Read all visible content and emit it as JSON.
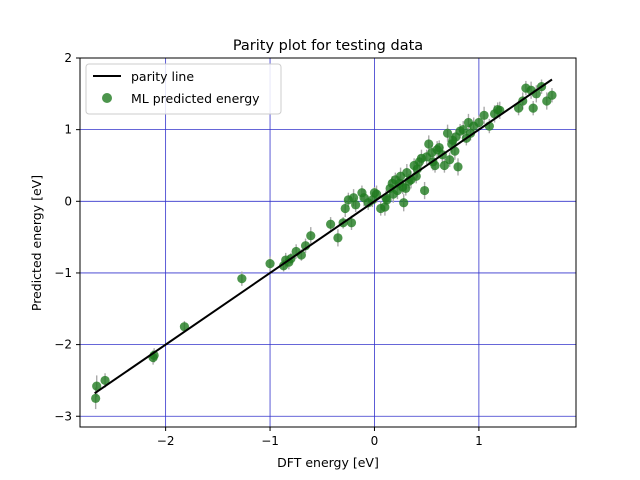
{
  "chart_data": {
    "type": "scatter",
    "title": "Parity plot for testing data",
    "xlabel": "DFT energy [eV]",
    "ylabel": "Predicted energy [eV]",
    "xlim": [
      -2.82,
      1.93
    ],
    "ylim": [
      -3.15,
      2.0
    ],
    "xticks": [
      -2,
      -1,
      0,
      1
    ],
    "xtick_labels": [
      "−2",
      "−1",
      "0",
      "1"
    ],
    "yticks": [
      -3,
      -2,
      -1,
      0,
      1,
      2
    ],
    "ytick_labels": [
      "−3",
      "−2",
      "−1",
      "0",
      "1",
      "2"
    ],
    "grid": true,
    "grid_color": "#3333cc",
    "legend": {
      "placement": "top-left",
      "entries": [
        "parity line",
        "ML predicted energy"
      ]
    },
    "series": [
      {
        "name": "parity line",
        "kind": "line",
        "color": "#000000",
        "x": [
          -2.68,
          1.7
        ],
        "y": [
          -2.68,
          1.7
        ]
      },
      {
        "name": "ML predicted energy",
        "kind": "scatter",
        "color": "#1f7a1f",
        "errorbar_color": "#aaaaaa",
        "x": [
          -2.67,
          -2.66,
          -2.58,
          -2.12,
          -2.11,
          -1.82,
          -1.27,
          -1.0,
          -0.87,
          -0.85,
          -0.82,
          -0.8,
          -0.75,
          -0.7,
          -0.66,
          -0.61,
          -0.42,
          -0.35,
          -0.3,
          -0.28,
          -0.25,
          -0.22,
          -0.2,
          -0.18,
          -0.12,
          -0.1,
          -0.06,
          -0.02,
          0.0,
          0.02,
          0.06,
          0.1,
          0.11,
          0.12,
          0.15,
          0.17,
          0.18,
          0.2,
          0.22,
          0.24,
          0.25,
          0.27,
          0.28,
          0.3,
          0.31,
          0.33,
          0.35,
          0.38,
          0.4,
          0.41,
          0.43,
          0.45,
          0.48,
          0.5,
          0.52,
          0.55,
          0.56,
          0.58,
          0.6,
          0.62,
          0.65,
          0.67,
          0.7,
          0.72,
          0.74,
          0.75,
          0.77,
          0.78,
          0.8,
          0.82,
          0.85,
          0.88,
          0.9,
          0.92,
          0.95,
          1.0,
          1.05,
          1.1,
          1.15,
          1.18,
          1.2,
          1.38,
          1.42,
          1.45,
          1.5,
          1.52,
          1.55,
          1.6,
          1.65,
          1.7
        ],
        "y": [
          -2.75,
          -2.58,
          -2.5,
          -2.18,
          -2.15,
          -1.75,
          -1.08,
          -0.87,
          -0.9,
          -0.82,
          -0.85,
          -0.8,
          -0.7,
          -0.75,
          -0.62,
          -0.48,
          -0.32,
          -0.51,
          -0.3,
          -0.1,
          0.02,
          -0.3,
          0.05,
          -0.05,
          0.12,
          0.05,
          -0.02,
          0.02,
          0.12,
          0.1,
          -0.1,
          -0.08,
          0.05,
          0.02,
          0.18,
          0.25,
          0.1,
          0.3,
          0.15,
          0.25,
          0.35,
          0.2,
          -0.02,
          0.18,
          0.4,
          0.28,
          0.3,
          0.5,
          0.35,
          0.45,
          0.55,
          0.6,
          0.15,
          0.62,
          0.8,
          0.68,
          0.55,
          0.5,
          0.72,
          0.75,
          0.65,
          0.5,
          0.95,
          0.58,
          0.8,
          0.85,
          0.7,
          0.9,
          0.48,
          0.98,
          1.0,
          0.88,
          1.1,
          0.95,
          1.05,
          1.1,
          1.2,
          1.05,
          1.22,
          1.28,
          1.27,
          1.3,
          1.4,
          1.58,
          1.55,
          1.3,
          1.5,
          1.6,
          1.4,
          1.48
        ],
        "yerr": [
          0.15,
          0.15,
          0.1,
          0.1,
          0.1,
          0.08,
          0.1,
          0.1,
          0.08,
          0.1,
          0.1,
          0.08,
          0.1,
          0.08,
          0.1,
          0.12,
          0.1,
          0.12,
          0.08,
          0.12,
          0.1,
          0.1,
          0.12,
          0.1,
          0.1,
          0.12,
          0.1,
          0.1,
          0.08,
          0.12,
          0.1,
          0.12,
          0.1,
          0.08,
          0.12,
          0.1,
          0.12,
          0.1,
          0.12,
          0.1,
          0.12,
          0.1,
          0.12,
          0.1,
          0.12,
          0.1,
          0.12,
          0.1,
          0.1,
          0.12,
          0.1,
          0.12,
          0.12,
          0.1,
          0.12,
          0.1,
          0.12,
          0.1,
          0.12,
          0.1,
          0.12,
          0.1,
          0.12,
          0.1,
          0.12,
          0.1,
          0.12,
          0.1,
          0.12,
          0.1,
          0.12,
          0.1,
          0.12,
          0.1,
          0.12,
          0.1,
          0.12,
          0.1,
          0.12,
          0.1,
          0.12,
          0.1,
          0.12,
          0.1,
          0.12,
          0.1,
          0.12,
          0.1,
          0.12,
          0.1
        ]
      }
    ]
  }
}
